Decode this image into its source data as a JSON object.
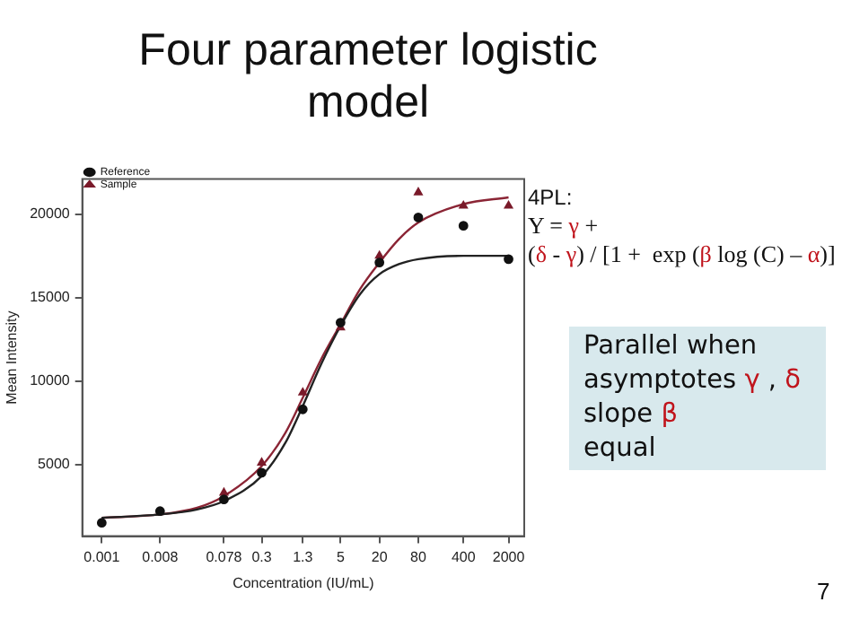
{
  "chart_data": {
    "type": "scatter",
    "title": "Four parameter logistic model",
    "xlabel": "Concentration (IU/mL)",
    "ylabel": "Mean Intensity",
    "log": "x",
    "xlim": [
      0.0005,
      3500
    ],
    "xticks": [
      0.001,
      0.008,
      0.078,
      0.3,
      1.3,
      5,
      20,
      80,
      400,
      2000
    ],
    "ylim": [
      700,
      22100
    ],
    "yticks": [
      5000,
      10000,
      15000,
      20000
    ],
    "grid": false,
    "legend": "top left",
    "series": [
      {
        "name": "Reference",
        "type": "scatter",
        "marker": "circle",
        "color": "#111111",
        "x": [
          0.001,
          0.008,
          0.078,
          0.3,
          1.3,
          5,
          20,
          80,
          400,
          2000
        ],
        "values": [
          1500,
          2200,
          2900,
          4500,
          8300,
          13500,
          17100,
          19800,
          19300,
          17300
        ]
      },
      {
        "name": "Sample",
        "type": "scatter",
        "marker": "triangle",
        "color": "#7a1a2a",
        "x": [
          0.078,
          0.3,
          1.3,
          5,
          20,
          80,
          400,
          2000
        ],
        "values": [
          3300,
          5100,
          9300,
          13200,
          17500,
          21300,
          20500,
          20500
        ]
      },
      {
        "type": "line",
        "marker": "none",
        "color": "#222222",
        "x": [
          0.001,
          0.008,
          0.03,
          0.078,
          0.3,
          0.7,
          1.3,
          2.5,
          5,
          10,
          20,
          40,
          80,
          400,
          2000
        ],
        "values": [
          1800,
          2000,
          2300,
          2800,
          4300,
          6300,
          8500,
          11000,
          13300,
          15200,
          16400,
          17000,
          17300,
          17500,
          17500
        ]
      },
      {
        "type": "line",
        "marker": "none",
        "color": "#8b2535",
        "x": [
          0.001,
          0.008,
          0.03,
          0.078,
          0.3,
          0.7,
          1.3,
          2.5,
          5,
          10,
          20,
          40,
          80,
          400,
          2000
        ],
        "values": [
          1800,
          2000,
          2400,
          3100,
          4900,
          6900,
          9000,
          11300,
          13400,
          15500,
          17100,
          18500,
          19500,
          20600,
          21000
        ]
      }
    ],
    "annotations": [
      "4PL:",
      "Y = γ +",
      "(δ - γ) / [1 +  exp (β log (C) – α)]",
      "Parallel when\nasymptotes γ , δ\nslope β\nequal",
      "7"
    ]
  }
}
